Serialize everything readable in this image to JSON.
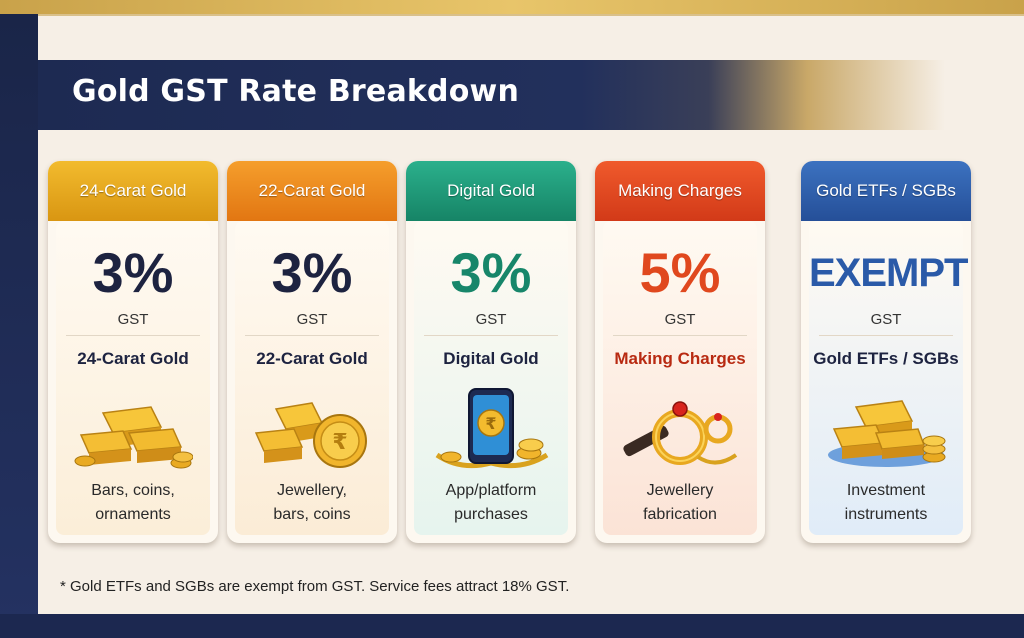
{
  "title": "Gold GST Rate Breakdown",
  "cards": [
    {
      "header": "24-Carat Gold",
      "rate": "3%",
      "unit": "GST",
      "name": "24-Carat Gold",
      "desc1": "Bars, coins,",
      "desc2": "ornaments",
      "icon": "gold-bars-icon",
      "color": "#e3a51a"
    },
    {
      "header": "22-Carat Gold",
      "rate": "3%",
      "unit": "GST",
      "name": "22-Carat Gold",
      "desc1": "Jewellery,",
      "desc2": "bars, coins",
      "icon": "gold-coin-rupee-icon",
      "color": "#ec8a1c"
    },
    {
      "header": "Digital Gold",
      "rate": "3%",
      "unit": "GST",
      "name": "Digital Gold",
      "desc1": "App/platform",
      "desc2": "purchases",
      "icon": "phone-rupee-icon",
      "color": "#1f9a7a"
    },
    {
      "header": "Making Charges",
      "rate": "5%",
      "unit": "GST",
      "name": "Making Charges",
      "desc1": "Jewellery",
      "desc2": "fabrication",
      "icon": "ring-tools-icon",
      "color": "#e24a24"
    },
    {
      "header": "Gold ETFs / SGBs",
      "rate": "EXEMPT",
      "unit": "GST",
      "name": "Gold ETFs / SGBs",
      "desc1": "Investment",
      "desc2": "instruments",
      "icon": "gold-bars-coins-icon",
      "color": "#2e5faa"
    }
  ],
  "footnote": "* Gold ETFs and SGBs are exempt from GST. Service fees attract 18% GST."
}
